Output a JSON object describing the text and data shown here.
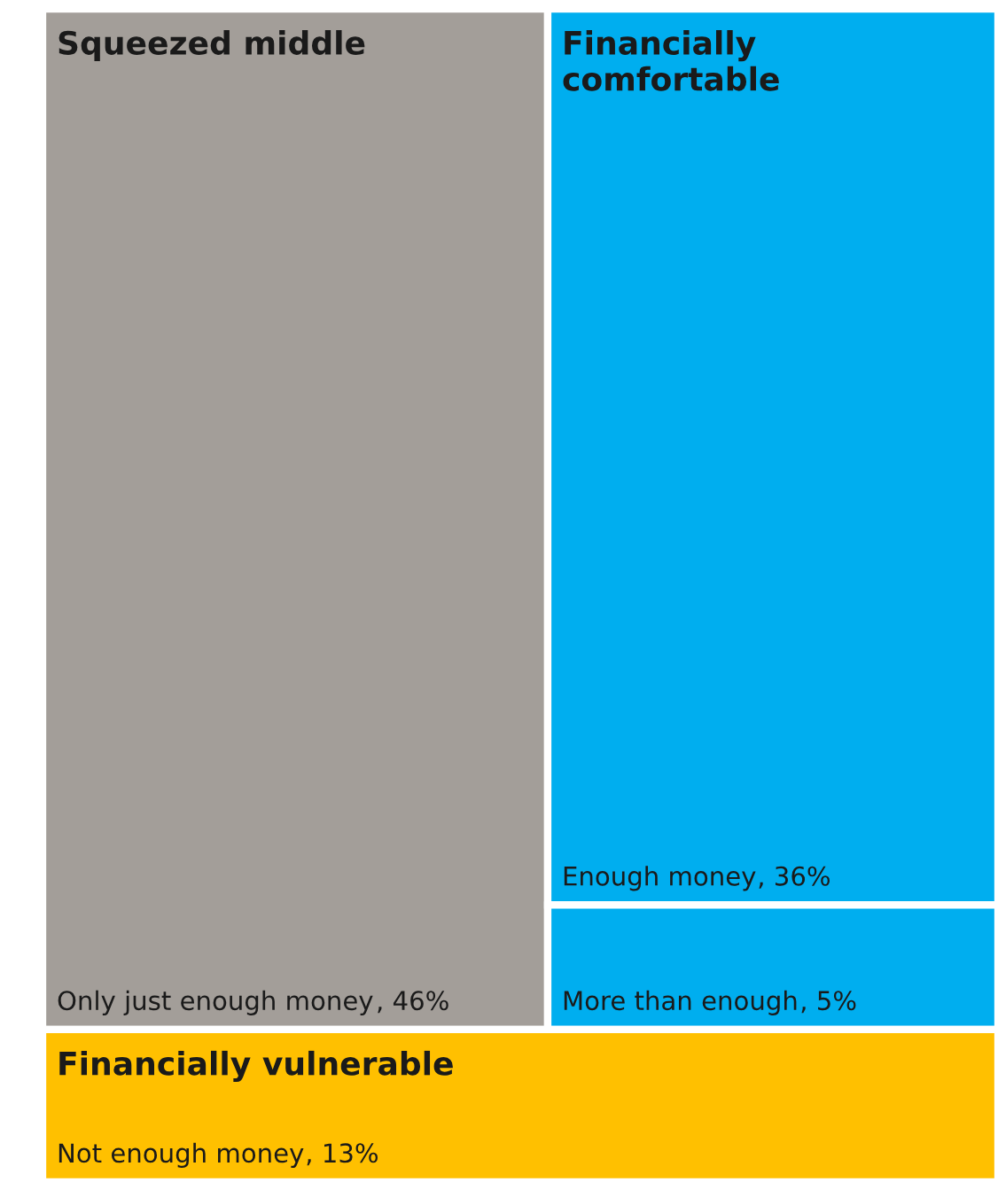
{
  "chart_data": {
    "type": "other",
    "categories": [
      "Only just enough money",
      "Enough money",
      "More than enough",
      "Not enough money"
    ],
    "series": [
      {
        "name": "Squeezed middle",
        "color": "#a39e99",
        "values": [
          46,
          null,
          null,
          null
        ],
        "value_labels": [
          ", 46%",
          null,
          null,
          null
        ]
      },
      {
        "name": "Financially comfortable",
        "color": "#00aeef",
        "values": [
          null,
          36,
          5,
          null
        ],
        "value_labels": [
          null,
          ", 36%",
          ", 5%",
          null
        ]
      },
      {
        "name": "Financially vulnerable",
        "color": "#ffc000",
        "values": [
          null,
          null,
          null,
          13
        ],
        "value_labels": [
          null,
          null,
          null,
          ", 13%"
        ]
      }
    ]
  }
}
